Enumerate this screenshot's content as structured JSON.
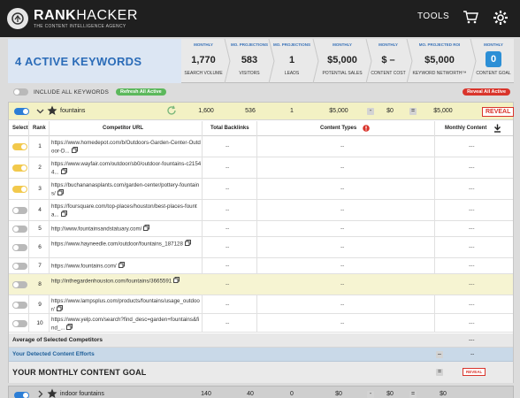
{
  "brand": {
    "name_bold": "RANK",
    "name_thin": "HACKER",
    "tagline": "THE CONTENT INTELLIGENCE AGENCY"
  },
  "nav": {
    "tools": "TOOLS"
  },
  "summary": {
    "active_keywords": "4 ACTIVE KEYWORDS",
    "metrics": [
      {
        "top": "MONTHLY",
        "value": "1,770",
        "bottom": "SEARCH VOLUME"
      },
      {
        "top": "MO. PROJECTIONS",
        "value": "583",
        "bottom": "VISITORS"
      },
      {
        "top": "MO. PROJECTIONS",
        "value": "1",
        "bottom": "LEADS"
      },
      {
        "top": "MONTHLY",
        "value": "$5,000",
        "bottom": "POTENTIAL SALES"
      },
      {
        "top": "MONTHLY",
        "value": "$ –",
        "bottom": "CONTENT COST"
      },
      {
        "top": "MO. PROJECTED ROI",
        "value": "$5,000",
        "bottom": "KEYWORD NETWORTH™"
      },
      {
        "top": "MONTHLY",
        "value": "0",
        "bottom": "CONTENT GOAL"
      }
    ]
  },
  "controls": {
    "include_all": "INCLUDE ALL KEYWORDS",
    "refresh_all": "Refresh All Active",
    "reveal_all": "Reveal All Active"
  },
  "keyword": {
    "name": "fountains",
    "volume": "1,600",
    "visitors": "536",
    "leads": "1",
    "sales": "$5,000",
    "minus": "-",
    "cost": "$0",
    "equals": "=",
    "networth": "$5,000",
    "reveal": "REVEAL"
  },
  "table": {
    "headers": {
      "select": "Select",
      "rank": "Rank",
      "url": "Competitor URL",
      "backlinks": "Total Backlinks",
      "types": "Content Types",
      "monthly": "Monthly Content"
    },
    "rows": [
      {
        "rank": "1",
        "url": "https://www.homedepot.com/b/Outdoors-Garden-Center-Outdoor-D...",
        "backlinks": "--",
        "types": "--",
        "monthly": "---"
      },
      {
        "rank": "2",
        "url": "https://www.wayfair.com/outdoor/sb0/outdoor-fountains-c21544...",
        "backlinks": "--",
        "types": "--",
        "monthly": "---"
      },
      {
        "rank": "3",
        "url": "https://buchananasplants.com/garden-center/pottery-fountains/",
        "backlinks": "--",
        "types": "--",
        "monthly": "---"
      },
      {
        "rank": "4",
        "url": "https://foursquare.com/top-places/houston/best-places-founta...",
        "backlinks": "--",
        "types": "--",
        "monthly": "---"
      },
      {
        "rank": "5",
        "url": "http://www.fountainsandstatuary.com/",
        "backlinks": "--",
        "types": "--",
        "monthly": "---"
      },
      {
        "rank": "6",
        "url": "https://www.hayneedle.com/outdoor/fountains_187128",
        "backlinks": "--",
        "types": "--",
        "monthly": "---"
      },
      {
        "rank": "7",
        "url": "https://www.fountains.com/",
        "backlinks": "--",
        "types": "--",
        "monthly": "---"
      },
      {
        "rank": "8",
        "url": "http://inthegardenhouston.com/fountains/3665591",
        "backlinks": "--",
        "types": "--",
        "monthly": "---"
      },
      {
        "rank": "9",
        "url": "https://www.lampsplus.com/products/fountains/usage_outdoor/",
        "backlinks": "--",
        "types": "--",
        "monthly": "---"
      },
      {
        "rank": "10",
        "url": "https://www.yelp.com/search?find_desc=garden+fountains&find_...",
        "backlinks": "--",
        "types": "--",
        "monthly": "---"
      }
    ],
    "avg_label": "Average of Selected Competitors",
    "avg_value": "---",
    "detected_label": "Your Detected Content Efforts",
    "detected_value": "--",
    "goal_label": "YOUR MONTHLY CONTENT GOAL",
    "goal_reveal": "REVEAL"
  },
  "keyword2": {
    "name": "indoor fountains",
    "volume": "140",
    "visitors": "40",
    "leads": "0",
    "sales": "$0",
    "minus": "-",
    "cost": "$0",
    "equals": "=",
    "networth": "$0"
  },
  "colors": {
    "accent_blue": "#2b6cb8",
    "refresh_green": "#5cb85c",
    "reveal_red": "#d9342b",
    "highlight_yellow": "#f3f1c4"
  }
}
